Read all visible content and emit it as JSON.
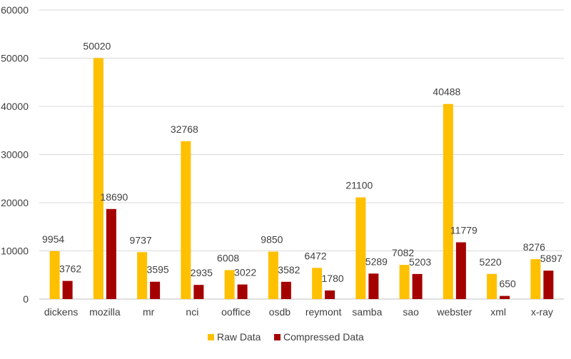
{
  "chart_data": {
    "type": "bar",
    "title": "",
    "xlabel": "",
    "ylabel": "",
    "ylim": [
      0,
      60000
    ],
    "y_ticks": [
      "0",
      "10000",
      "20000",
      "30000",
      "40000",
      "50000",
      "60000"
    ],
    "grid": true,
    "legend_position": "bottom",
    "categories": [
      "dickens",
      "mozilla",
      "mr",
      "nci",
      "ooffice",
      "osdb",
      "reymont",
      "samba",
      "sao",
      "webster",
      "xml",
      "x-ray"
    ],
    "series": [
      {
        "name": "Raw Data",
        "color": "#FFC000",
        "values": [
          9954,
          50020,
          9737,
          32768,
          6008,
          9850,
          6472,
          21100,
          7082,
          40488,
          5220,
          8276
        ]
      },
      {
        "name": "Compressed Data",
        "color": "#A50000",
        "values": [
          3762,
          18690,
          3595,
          2935,
          3022,
          3582,
          1780,
          5289,
          5203,
          11779,
          650,
          5897
        ]
      }
    ]
  }
}
